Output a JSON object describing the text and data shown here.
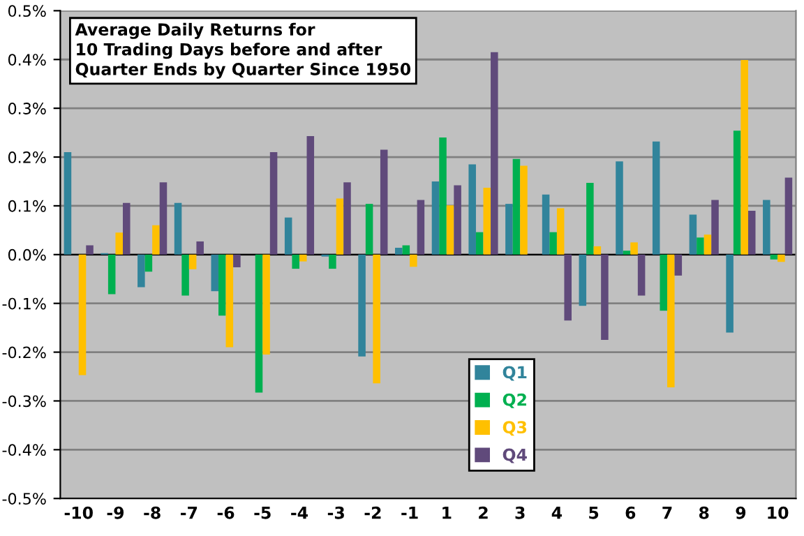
{
  "chart_data": {
    "type": "bar",
    "title": "Average Daily Returns for\n10 Trading Days before and after\nQuarter Ends by Quarter Since 1950",
    "categories": [
      "-10",
      "-9",
      "-8",
      "-7",
      "-6",
      "-5",
      "-4",
      "-3",
      "-2",
      "-1",
      "1",
      "2",
      "3",
      "4",
      "5",
      "6",
      "7",
      "8",
      "9",
      "10"
    ],
    "series": [
      {
        "name": "Q1",
        "color": "#31849b",
        "values": [
          0.21,
          0.003,
          -0.067,
          0.106,
          -0.075,
          0.0,
          0.076,
          -0.004,
          -0.209,
          0.014,
          0.15,
          0.185,
          0.104,
          0.123,
          -0.105,
          0.191,
          0.232,
          0.082,
          -0.16,
          0.112
        ]
      },
      {
        "name": "Q2",
        "color": "#00b050",
        "values": [
          0.0,
          -0.081,
          -0.035,
          -0.084,
          -0.125,
          -0.283,
          -0.029,
          -0.029,
          0.104,
          0.019,
          0.24,
          0.046,
          0.196,
          0.046,
          0.147,
          0.008,
          -0.115,
          0.035,
          0.254,
          -0.01
        ]
      },
      {
        "name": "Q3",
        "color": "#ffc000",
        "values": [
          -0.247,
          0.045,
          0.06,
          -0.03,
          -0.19,
          -0.205,
          -0.014,
          0.115,
          -0.264,
          -0.025,
          0.101,
          0.137,
          0.182,
          0.095,
          0.017,
          0.025,
          -0.272,
          0.041,
          0.399,
          -0.015
        ]
      },
      {
        "name": "Q4",
        "color": "#604a7b",
        "values": [
          0.019,
          0.106,
          0.148,
          0.027,
          -0.026,
          0.21,
          0.243,
          0.148,
          0.215,
          0.112,
          0.142,
          0.415,
          0.0,
          -0.135,
          -0.175,
          -0.084,
          -0.043,
          0.112,
          0.09,
          0.158
        ]
      }
    ],
    "ylim": [
      -0.5,
      0.5
    ],
    "yticks": [
      {
        "value": -0.5,
        "label": "-0.5%"
      },
      {
        "value": -0.4,
        "label": "-0.4%"
      },
      {
        "value": -0.3,
        "label": "-0.3%"
      },
      {
        "value": -0.2,
        "label": "-0.2%"
      },
      {
        "value": -0.1,
        "label": "-0.1%"
      },
      {
        "value": 0,
        "label": "0.0%"
      },
      {
        "value": 0.1,
        "label": "0.1%"
      },
      {
        "value": 0.2,
        "label": "0.2%"
      },
      {
        "value": 0.3,
        "label": "0.3%"
      },
      {
        "value": 0.4,
        "label": "0.4%"
      },
      {
        "value": 0.5,
        "label": "0.5%"
      }
    ],
    "grid": "y",
    "legend": "bottom"
  }
}
